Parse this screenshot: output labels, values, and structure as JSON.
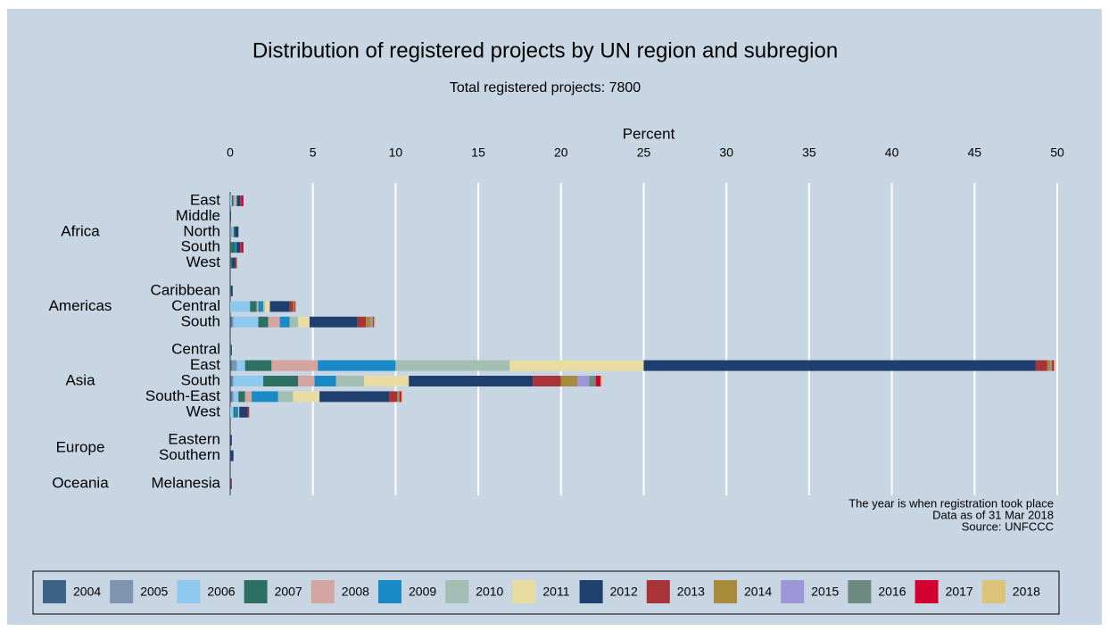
{
  "chart_data": {
    "type": "stacked-barh",
    "title": "Distribution of registered projects by UN region and subregion",
    "subtitle": "Total registered projects: 7800",
    "x_label": "Percent",
    "groups": [
      {
        "name": "Africa",
        "categories": [
          "East",
          "Middle",
          "North",
          "South",
          "West"
        ]
      },
      {
        "name": "Americas",
        "categories": [
          "Caribbean",
          "Central",
          "South"
        ]
      },
      {
        "name": "Asia",
        "categories": [
          "Central",
          "East",
          "South",
          "South-East",
          "West"
        ]
      },
      {
        "name": "Europe",
        "categories": [
          "Eastern",
          "Southern"
        ]
      },
      {
        "name": "Oceania",
        "categories": [
          "Melanesia"
        ]
      }
    ],
    "xlim": [
      0,
      50
    ],
    "xticks": [
      0,
      5,
      10,
      15,
      20,
      25,
      30,
      35,
      40,
      45,
      50
    ],
    "grid": true,
    "notes": [
      "The year is when registration took place",
      "Data as of 31 Mar 2018",
      "Source: UNFCCC"
    ],
    "series": [
      {
        "name": "2004",
        "color": "#3d6487",
        "values": [
          0,
          0,
          0,
          0,
          0,
          0,
          0,
          0.1,
          0,
          0.1,
          0.1,
          0.1,
          0,
          0,
          0,
          0
        ]
      },
      {
        "name": "2005",
        "color": "#7d95ae",
        "values": [
          0,
          0,
          0.1,
          0,
          0,
          0,
          0,
          0.1,
          0,
          0.3,
          0.1,
          0.1,
          0,
          0,
          0,
          0
        ]
      },
      {
        "name": "2006",
        "color": "#8dc8ef",
        "values": [
          0.1,
          0,
          0.1,
          0,
          0,
          0,
          1.2,
          1.5,
          0,
          0.5,
          1.8,
          0.3,
          0.2,
          0,
          0,
          0
        ]
      },
      {
        "name": "2007",
        "color": "#2d6f63",
        "values": [
          0.1,
          0,
          0.1,
          0.3,
          0.1,
          0.05,
          0.4,
          0.6,
          0.05,
          1.6,
          2.1,
          0.4,
          0.1,
          0,
          0,
          0
        ]
      },
      {
        "name": "2008",
        "color": "#d4a5a0",
        "values": [
          0.1,
          0,
          0,
          0,
          0,
          0,
          0.1,
          0.7,
          0,
          2.8,
          1.0,
          0.4,
          0,
          0,
          0,
          0
        ]
      },
      {
        "name": "2009",
        "color": "#1a8ac6",
        "values": [
          0,
          0,
          0,
          0.1,
          0,
          0,
          0.3,
          0.6,
          0,
          4.7,
          1.3,
          1.6,
          0.2,
          0,
          0,
          0
        ]
      },
      {
        "name": "2010",
        "color": "#a3bfb4",
        "values": [
          0.1,
          0,
          0,
          0,
          0,
          0,
          0.1,
          0.5,
          0,
          6.9,
          1.7,
          0.9,
          0,
          0,
          0,
          0
        ]
      },
      {
        "name": "2011",
        "color": "#e8dca0",
        "values": [
          0,
          0,
          0,
          0,
          0,
          0,
          0.3,
          0.7,
          0,
          8.1,
          2.7,
          1.6,
          0.05,
          0,
          0,
          0
        ]
      },
      {
        "name": "2012",
        "color": "#1f3f6e",
        "values": [
          0.2,
          0.05,
          0.2,
          0.2,
          0.2,
          0.1,
          1.2,
          2.9,
          0.05,
          23.7,
          7.5,
          4.2,
          0.5,
          0.1,
          0.2,
          0.05
        ]
      },
      {
        "name": "2013",
        "color": "#a8343a",
        "values": [
          0.1,
          0,
          0,
          0.1,
          0.1,
          0,
          0.2,
          0.5,
          0,
          0.7,
          1.7,
          0.5,
          0.1,
          0,
          0,
          0.05
        ]
      },
      {
        "name": "2014",
        "color": "#a88a3b",
        "values": [
          0,
          0,
          0,
          0,
          0,
          0,
          0.1,
          0.3,
          0,
          0.2,
          1.0,
          0.1,
          0,
          0,
          0,
          0
        ]
      },
      {
        "name": "2015",
        "color": "#9e96d8",
        "values": [
          0,
          0,
          0,
          0,
          0,
          0,
          0,
          0.1,
          0,
          0.05,
          0.7,
          0,
          0,
          0,
          0,
          0
        ]
      },
      {
        "name": "2016",
        "color": "#6c8a80",
        "values": [
          0,
          0,
          0,
          0,
          0,
          0,
          0,
          0.05,
          0,
          0.05,
          0.4,
          0.05,
          0,
          0,
          0,
          0
        ]
      },
      {
        "name": "2017",
        "color": "#d3002f",
        "values": [
          0.1,
          0,
          0,
          0.1,
          0,
          0,
          0.05,
          0.05,
          0,
          0.1,
          0.3,
          0.1,
          0,
          0,
          0,
          0
        ]
      },
      {
        "name": "2018",
        "color": "#dcc37a",
        "values": [
          0,
          0,
          0,
          0,
          0,
          0,
          0,
          0.1,
          0,
          0.1,
          0.1,
          0.1,
          0,
          0,
          0,
          0
        ]
      }
    ]
  }
}
